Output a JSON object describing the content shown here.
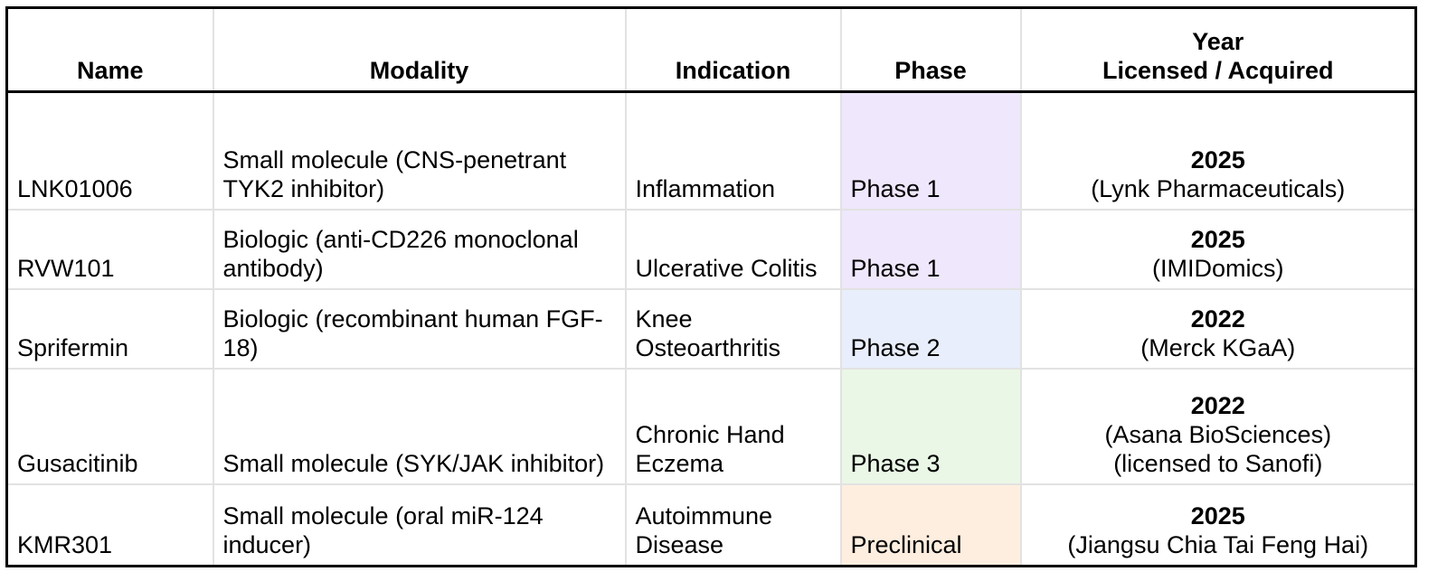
{
  "headers": [
    "Name",
    "Modality",
    "Indication",
    "Phase",
    "Year\nLicensed / Acquired"
  ],
  "header_year_line1": "Year",
  "header_year_line2": "Licensed / Acquired",
  "phase_colors": {
    "Phase 1": "#efe7fb",
    "Phase 2": "#e8eefb",
    "Phase 3": "#eaf7e6",
    "Preclinical": "#feeedf"
  },
  "rows": [
    {
      "name": "LNK01006",
      "modality": "Small molecule (CNS-penetrant TYK2 inhibitor)",
      "indication": "Inflammation",
      "phase": "Phase 1",
      "year": "2025",
      "notes": [
        "(Lynk Pharmaceuticals)"
      ]
    },
    {
      "name": "RVW101",
      "modality": "Biologic (anti-CD226 monoclonal antibody)",
      "indication": "Ulcerative Colitis",
      "phase": "Phase 1",
      "year": "2025",
      "notes": [
        "(IMIDomics)"
      ]
    },
    {
      "name": "Sprifermin",
      "modality": "Biologic (recombinant human FGF-18)",
      "indication": "Knee Osteoarthritis",
      "phase": "Phase 2",
      "year": "2022",
      "notes": [
        "(Merck KGaA)"
      ]
    },
    {
      "name": "Gusacitinib",
      "modality": "Small molecule (SYK/JAK inhibitor)",
      "indication": "Chronic Hand Eczema",
      "phase": "Phase 3",
      "year": "2022",
      "notes": [
        "(Asana BioSciences)",
        "(licensed to Sanofi)"
      ]
    },
    {
      "name": "KMR301",
      "modality": "Small molecule (oral miR-124 inducer)",
      "indication": "Autoimmune Disease",
      "phase": "Preclinical",
      "year": "2025",
      "notes": [
        "(Jiangsu Chia Tai Feng Hai)"
      ]
    }
  ]
}
